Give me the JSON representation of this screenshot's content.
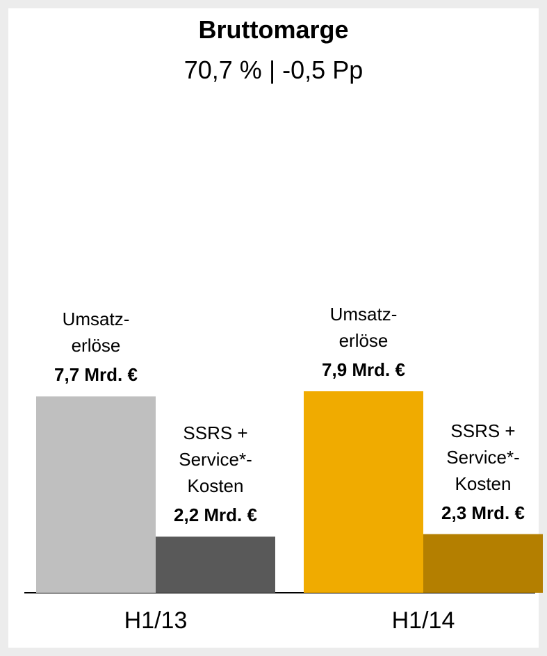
{
  "chart_data": {
    "type": "bar",
    "title": "Bruttomarge",
    "subtitle": "70,7 % | -0,5 Pp",
    "categories": [
      "H1/13",
      "H1/14"
    ],
    "series": [
      {
        "name": "Umsatz-\nerlöse",
        "colors": [
          "#bfbfbf",
          "#f0ab00"
        ],
        "values": [
          7.7,
          7.9
        ],
        "value_labels": [
          "7,7 Mrd. €",
          "7,9 Mrd. €"
        ]
      },
      {
        "name": "SSRS +\nService*-\nKosten",
        "colors": [
          "#595959",
          "#b47f00"
        ],
        "values": [
          2.2,
          2.3
        ],
        "value_labels": [
          "2,2 Mrd. €",
          "2,3 Mrd. €"
        ]
      }
    ]
  }
}
